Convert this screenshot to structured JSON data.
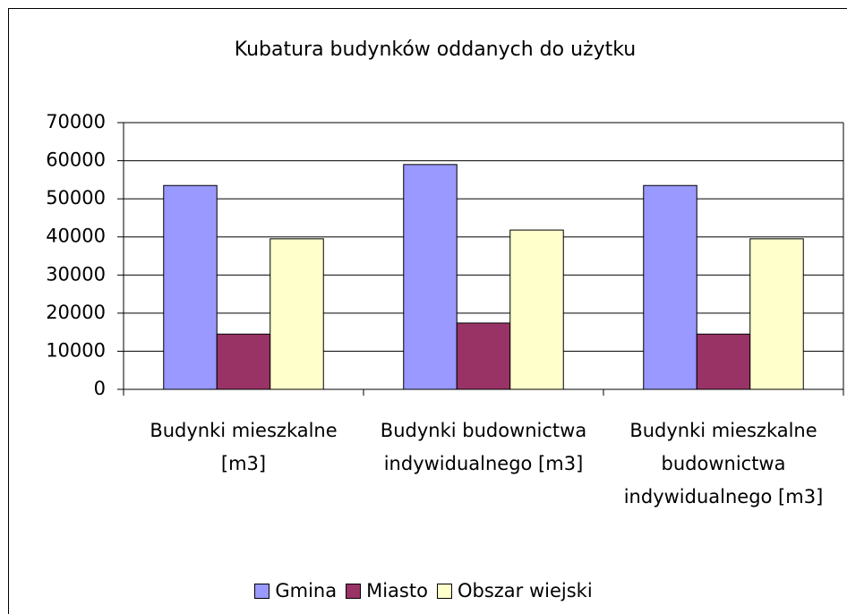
{
  "chart_data": {
    "type": "bar",
    "title": "Kubatura budynków oddanych do użytku",
    "categories": [
      "Budynki mieszkalne [m3]",
      "Budynki budownictwa indywidualnego [m3]",
      "Budynki mieszkalne budownictwa indywidualnego [m3]"
    ],
    "series": [
      {
        "name": "Gmina",
        "color": "#9999ff",
        "values": [
          53500,
          59000,
          53500
        ]
      },
      {
        "name": "Miasto",
        "color": "#993366",
        "values": [
          14500,
          17400,
          14500
        ]
      },
      {
        "name": "Obszar wiejski",
        "color": "#ffffcc",
        "values": [
          39500,
          41800,
          39500
        ]
      }
    ],
    "ylim": [
      0,
      70000
    ],
    "yticks": [
      0,
      10000,
      20000,
      30000,
      40000,
      50000,
      60000,
      70000
    ],
    "grid": true,
    "legend": "bottom"
  }
}
